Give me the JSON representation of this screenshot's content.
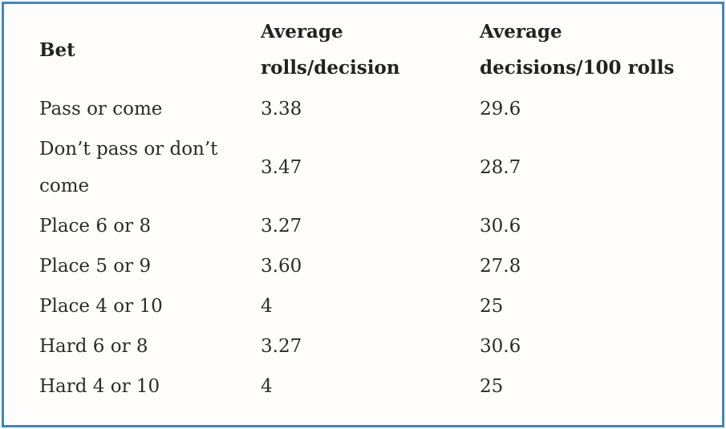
{
  "chart_data": {
    "type": "table",
    "title": "",
    "columns": [
      "Bet",
      "Average rolls/decision",
      "Average decisions/100 rolls"
    ],
    "rows": [
      [
        "Pass or come",
        "3.38",
        "29.6"
      ],
      [
        "Don’t pass or don’t come",
        "3.47",
        "28.7"
      ],
      [
        "Place 6 or 8",
        "3.27",
        "30.6"
      ],
      [
        "Place 5 or 9",
        "3.60",
        "27.8"
      ],
      [
        "Place 4 or 10",
        "4",
        "25"
      ],
      [
        "Hard 6 or 8",
        "3.27",
        "30.6"
      ],
      [
        "Hard 4 or 10",
        "4",
        "25"
      ]
    ],
    "layout": {
      "gridlines": false,
      "header_bold": true
    }
  },
  "colors": {
    "border": "#3c86c6",
    "text": "#2b2b2b",
    "background": "#fffefd"
  }
}
